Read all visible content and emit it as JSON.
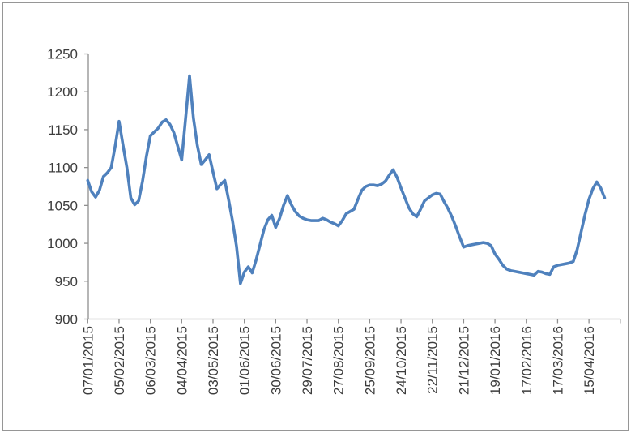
{
  "chart_data": {
    "type": "line",
    "title": "",
    "legend": "none",
    "grid": false,
    "x_tick_labels": [
      "07/01/2015",
      "05/02/2015",
      "06/03/2015",
      "04/04/2015",
      "03/05/2015",
      "01/06/2015",
      "30/06/2015",
      "29/07/2015",
      "27/08/2015",
      "25/09/2015",
      "24/10/2015",
      "22/11/2015",
      "21/12/2015",
      "19/01/2016",
      "17/02/2016",
      "17/03/2016",
      "15/04/2016"
    ],
    "points_per_label": 8,
    "ylim": [
      900,
      1250
    ],
    "y_tick_step": 50,
    "y_tick_labels": [
      "900",
      "950",
      "1000",
      "1050",
      "1100",
      "1150",
      "1200",
      "1250"
    ],
    "values": [
      1083,
      1068,
      1061,
      1070,
      1088,
      1093,
      1100,
      1128,
      1161,
      1130,
      1100,
      1060,
      1051,
      1056,
      1082,
      1115,
      1142,
      1147,
      1152,
      1160,
      1163,
      1157,
      1146,
      1128,
      1110,
      1165,
      1221,
      1165,
      1129,
      1104,
      1110,
      1117,
      1094,
      1072,
      1078,
      1083,
      1057,
      1029,
      996,
      947,
      962,
      969,
      961,
      978,
      998,
      1018,
      1031,
      1037,
      1021,
      1033,
      1050,
      1063,
      1051,
      1042,
      1036,
      1033,
      1031,
      1030,
      1030,
      1030,
      1033,
      1031,
      1028,
      1026,
      1023,
      1030,
      1039,
      1042,
      1045,
      1058,
      1070,
      1075,
      1077,
      1077,
      1076,
      1078,
      1082,
      1090,
      1097,
      1087,
      1073,
      1060,
      1047,
      1039,
      1035,
      1045,
      1056,
      1060,
      1064,
      1066,
      1065,
      1055,
      1046,
      1035,
      1022,
      1008,
      995,
      997,
      998,
      999,
      1000,
      1001,
      1000,
      997,
      986,
      979,
      971,
      966,
      964,
      963,
      962,
      961,
      960,
      959,
      958,
      963,
      962,
      960,
      959,
      969,
      971,
      972,
      973,
      974,
      976,
      992,
      1015,
      1038,
      1058,
      1072,
      1081,
      1073,
      1060
    ],
    "colors": {
      "series": "#4F81BD",
      "axis": "#8F8F8F",
      "text": "#3D3D3D",
      "border": "#969696",
      "background": "#FFFFFF"
    }
  }
}
